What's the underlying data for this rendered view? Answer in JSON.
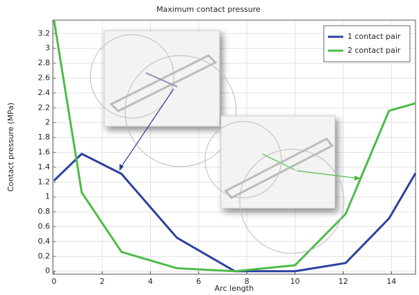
{
  "chart_data": {
    "type": "line",
    "title": "Maximum contact pressure",
    "x_label": "Arc length",
    "y_label": "Contact pressure (MPa)",
    "x": [
      0,
      1.15,
      2.8,
      5.1,
      7.5,
      10,
      12.1,
      13.9,
      15
    ],
    "series": [
      {
        "name": "1 contact pair",
        "color": "#2b3fa0",
        "values": [
          1.22,
          1.58,
          1.31,
          0.45,
          0,
          0,
          0.11,
          0.71,
          1.32
        ]
      },
      {
        "name": "2 contact pair",
        "color": "#4cbb47",
        "values": [
          3.38,
          1.06,
          0.26,
          0.04,
          0,
          0.08,
          0.77,
          2.16,
          2.26
        ]
      }
    ],
    "xlim": [
      -0.05,
      15
    ],
    "ylim": [
      -0.04,
      3.38
    ],
    "xticks": [
      0,
      2,
      4,
      6,
      8,
      10,
      12,
      14
    ],
    "yticks": [
      0,
      0.2,
      0.4,
      0.6,
      0.8,
      1,
      1.2,
      1.4,
      1.6,
      1.8,
      2,
      2.2,
      2.4,
      2.6,
      2.8,
      3,
      3.2
    ],
    "grid": true,
    "legend": "top-right"
  }
}
